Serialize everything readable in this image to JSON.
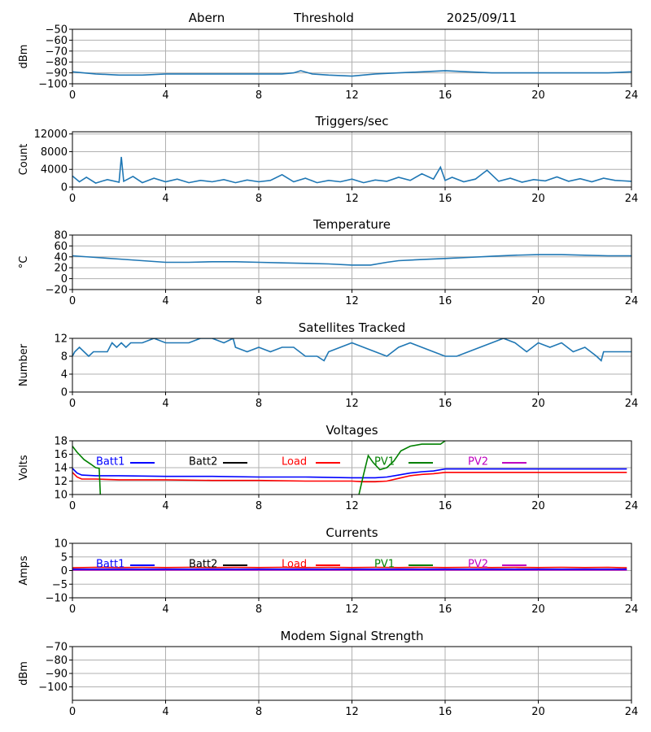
{
  "header": {
    "station": "Abern",
    "mode": "Threshold",
    "date": "2025/09/11"
  },
  "colors": {
    "series_default": "#1f77b4",
    "batt1": "#0000ff",
    "batt2": "#000000",
    "load": "#ff0000",
    "pv1": "#008000",
    "pv2": "#bf00bf",
    "grid": "#b0b0b0"
  },
  "chart_data": [
    {
      "id": "signal",
      "type": "line",
      "title": "",
      "xlabel": "",
      "ylabel": "dBm",
      "xlim": [
        0,
        24
      ],
      "ylim": [
        -100,
        -50
      ],
      "xticks": [
        0,
        4,
        8,
        12,
        16,
        20,
        24
      ],
      "yticks": [
        -100,
        -90,
        -80,
        -70,
        -60,
        -50
      ],
      "grid": true,
      "series": [
        {
          "color": "#1f77b4",
          "x": [
            0,
            1,
            2,
            3,
            4,
            6,
            8,
            9,
            9.5,
            9.8,
            10.3,
            11,
            12,
            13,
            14,
            15,
            16,
            17,
            18,
            19,
            20,
            21,
            22,
            23,
            24
          ],
          "y": [
            -89,
            -91,
            -92,
            -92,
            -91,
            -91,
            -91,
            -91,
            -90,
            -88,
            -91,
            -92,
            -93,
            -91,
            -90,
            -89,
            -88,
            -89,
            -90,
            -90,
            -90,
            -90,
            -90,
            -90,
            -89
          ]
        }
      ]
    },
    {
      "id": "triggers",
      "type": "line",
      "title": "Triggers/sec",
      "xlabel": "",
      "ylabel": "Count",
      "xlim": [
        0,
        24
      ],
      "ylim": [
        0,
        12500
      ],
      "xticks": [
        0,
        4,
        8,
        12,
        16,
        20,
        24
      ],
      "yticks": [
        0,
        4000,
        8000,
        12000
      ],
      "grid": true,
      "series": [
        {
          "color": "#1f77b4",
          "x": [
            0,
            0.3,
            0.6,
            1.0,
            1.5,
            2.0,
            2.1,
            2.2,
            2.6,
            3.0,
            3.5,
            4.0,
            4.5,
            5.0,
            5.5,
            6.0,
            6.5,
            7.0,
            7.5,
            8.0,
            8.5,
            9.0,
            9.5,
            10.0,
            10.5,
            11.0,
            11.5,
            12.0,
            12.5,
            13.0,
            13.5,
            14.0,
            14.5,
            15.0,
            15.5,
            15.8,
            16.0,
            16.3,
            16.8,
            17.3,
            17.8,
            18.3,
            18.8,
            19.3,
            19.8,
            20.3,
            20.8,
            21.3,
            21.8,
            22.3,
            22.8,
            23.3,
            24.0
          ],
          "y": [
            2500,
            1200,
            2200,
            900,
            1700,
            1100,
            6800,
            1300,
            2400,
            1000,
            2000,
            1200,
            1800,
            1000,
            1500,
            1200,
            1700,
            1000,
            1600,
            1200,
            1500,
            2800,
            1200,
            2000,
            1000,
            1500,
            1200,
            1800,
            1000,
            1600,
            1300,
            2200,
            1500,
            3000,
            1800,
            4500,
            1500,
            2200,
            1200,
            1800,
            3800,
            1300,
            2000,
            1100,
            1700,
            1400,
            2300,
            1300,
            1900,
            1200,
            2000,
            1500,
            1300
          ]
        }
      ]
    },
    {
      "id": "temperature",
      "type": "line",
      "title": "Temperature",
      "xlabel": "",
      "ylabel": "°C",
      "xlim": [
        0,
        24
      ],
      "ylim": [
        -20,
        80
      ],
      "xticks": [
        0,
        4,
        8,
        12,
        16,
        20,
        24
      ],
      "yticks": [
        -20,
        0,
        20,
        40,
        60,
        80
      ],
      "grid": true,
      "series": [
        {
          "color": "#1f77b4",
          "x": [
            0,
            1,
            2,
            3,
            4,
            5,
            6,
            7,
            8,
            9,
            10,
            11,
            12,
            12.8,
            13.5,
            14,
            15,
            16,
            17,
            18,
            19,
            20,
            21,
            22,
            23,
            24
          ],
          "y": [
            42,
            39,
            36,
            33,
            30,
            30,
            31,
            31,
            30,
            29,
            28,
            27,
            25,
            25,
            30,
            33,
            35,
            37,
            39,
            41,
            43,
            44,
            44,
            43,
            42,
            42
          ]
        }
      ]
    },
    {
      "id": "satellites",
      "type": "line",
      "title": "Satellites Tracked",
      "xlabel": "",
      "ylabel": "Number",
      "xlim": [
        0,
        24
      ],
      "ylim": [
        0,
        12
      ],
      "xticks": [
        0,
        4,
        8,
        12,
        16,
        20,
        24
      ],
      "yticks": [
        0,
        4,
        8,
        12
      ],
      "grid": true,
      "series": [
        {
          "color": "#1f77b4",
          "x": [
            0,
            0.1,
            0.3,
            0.5,
            0.7,
            0.9,
            1.1,
            1.5,
            1.7,
            1.9,
            2.1,
            2.3,
            2.5,
            3.0,
            3.5,
            4.0,
            4.5,
            5.0,
            5.5,
            6.0,
            6.5,
            6.9,
            7.0,
            7.5,
            8.0,
            8.5,
            9.0,
            9.5,
            10.0,
            10.5,
            10.8,
            11.0,
            11.5,
            12.0,
            12.5,
            13.0,
            13.5,
            14.0,
            14.5,
            15.0,
            15.5,
            16.0,
            16.5,
            17.0,
            17.5,
            18.0,
            18.5,
            19.0,
            19.5,
            20.0,
            20.5,
            21.0,
            21.5,
            22.0,
            22.5,
            22.7,
            22.8,
            23.0,
            23.5,
            24.0
          ],
          "y": [
            8,
            9,
            10,
            9,
            8,
            9,
            9,
            9,
            11,
            10,
            11,
            10,
            11,
            11,
            12,
            11,
            11,
            11,
            12,
            12,
            11,
            12,
            10,
            9,
            10,
            9,
            10,
            10,
            8,
            8,
            7,
            9,
            10,
            11,
            10,
            9,
            8,
            10,
            11,
            10,
            9,
            8,
            8,
            9,
            10,
            11,
            12,
            11,
            9,
            11,
            10,
            11,
            9,
            10,
            8,
            7,
            9,
            9,
            9,
            9
          ]
        }
      ]
    },
    {
      "id": "voltages",
      "type": "line",
      "title": "Voltages",
      "xlabel": "",
      "ylabel": "Volts",
      "xlim": [
        0,
        24
      ],
      "ylim": [
        10,
        18
      ],
      "xticks": [
        0,
        4,
        8,
        12,
        16,
        20,
        24
      ],
      "yticks": [
        10,
        12,
        14,
        16,
        18
      ],
      "grid": true,
      "legend": [
        "Batt1",
        "Batt2",
        "Load",
        "PV1",
        "PV2"
      ],
      "series": [
        {
          "name": "Batt1",
          "color": "#0000ff",
          "x": [
            0,
            0.2,
            0.4,
            1,
            2,
            4,
            6,
            8,
            10,
            12,
            12.5,
            13,
            13.5,
            14,
            14.5,
            15,
            15.5,
            16,
            17,
            18,
            20,
            22,
            23.8
          ],
          "y": [
            13.9,
            13.2,
            12.9,
            12.8,
            12.8,
            12.7,
            12.7,
            12.6,
            12.6,
            12.5,
            12.5,
            12.5,
            12.6,
            12.9,
            13.2,
            13.4,
            13.5,
            13.8,
            13.8,
            13.8,
            13.8,
            13.8,
            13.8
          ]
        },
        {
          "name": "Load",
          "color": "#ff0000",
          "x": [
            0,
            0.2,
            0.4,
            1,
            2,
            4,
            6,
            8,
            10,
            12,
            12.5,
            13,
            13.5,
            14,
            14.5,
            15,
            15.5,
            16,
            17,
            18,
            20,
            22,
            23.8
          ],
          "y": [
            13.3,
            12.6,
            12.3,
            12.3,
            12.2,
            12.2,
            12.1,
            12.1,
            12.0,
            12.0,
            11.9,
            11.9,
            12.0,
            12.4,
            12.8,
            13.0,
            13.1,
            13.3,
            13.3,
            13.3,
            13.3,
            13.3,
            13.3
          ]
        },
        {
          "name": "PV1",
          "color": "#008000",
          "x": [
            0,
            0.2,
            0.5,
            0.8,
            1.0,
            1.15,
            1.2
          ],
          "y": [
            17.2,
            16.3,
            15.2,
            14.5,
            14.0,
            13.9,
            10.0
          ]
        },
        {
          "name": "PV1",
          "color": "#008000",
          "x": [
            12.3,
            12.5,
            12.7,
            12.9,
            13.2,
            13.5,
            13.8,
            14.1,
            14.5,
            15.0,
            15.5,
            15.8,
            16.0
          ],
          "y": [
            10.0,
            13.0,
            15.8,
            14.8,
            13.7,
            14.0,
            15.0,
            16.5,
            17.2,
            17.5,
            17.5,
            17.5,
            18.0
          ]
        }
      ]
    },
    {
      "id": "currents",
      "type": "line",
      "title": "Currents",
      "xlabel": "",
      "ylabel": "Amps",
      "xlim": [
        0,
        24
      ],
      "ylim": [
        -10,
        10
      ],
      "xticks": [
        0,
        4,
        8,
        12,
        16,
        20,
        24
      ],
      "yticks": [
        -10,
        -5,
        0,
        5,
        10
      ],
      "grid": true,
      "legend": [
        "Batt1",
        "Batt2",
        "Load",
        "PV1",
        "PV2"
      ],
      "series": [
        {
          "name": "PV2",
          "color": "#bf00bf",
          "x": [
            0,
            23.8
          ],
          "y": [
            0.2,
            0.2
          ]
        },
        {
          "name": "Batt1",
          "color": "#0000ff",
          "x": [
            0,
            23.8
          ],
          "y": [
            0.5,
            0.5
          ]
        },
        {
          "name": "Load",
          "color": "#ff0000",
          "x": [
            0,
            1,
            2,
            3,
            4,
            5,
            6,
            7,
            8,
            9,
            10,
            11,
            12,
            13,
            14,
            15,
            16,
            17,
            18,
            19,
            20,
            21,
            22,
            23,
            23.8
          ],
          "y": [
            1.0,
            1.2,
            1.1,
            1.2,
            1.1,
            1.2,
            1.1,
            1.2,
            1.1,
            1.2,
            1.1,
            1.2,
            1.1,
            1.2,
            1.1,
            1.2,
            1.1,
            1.2,
            1.1,
            1.2,
            1.1,
            1.2,
            1.1,
            1.2,
            1.0
          ]
        }
      ]
    },
    {
      "id": "modem",
      "type": "line",
      "title": "Modem Signal Strength",
      "xlabel": "",
      "ylabel": "dBm",
      "xlim": [
        0,
        24
      ],
      "ylim": [
        -110,
        -70
      ],
      "xticks": [
        0,
        4,
        8,
        12,
        16,
        20,
        24
      ],
      "yticks": [
        -100,
        -90,
        -80,
        -70
      ],
      "grid": true,
      "series": []
    }
  ]
}
